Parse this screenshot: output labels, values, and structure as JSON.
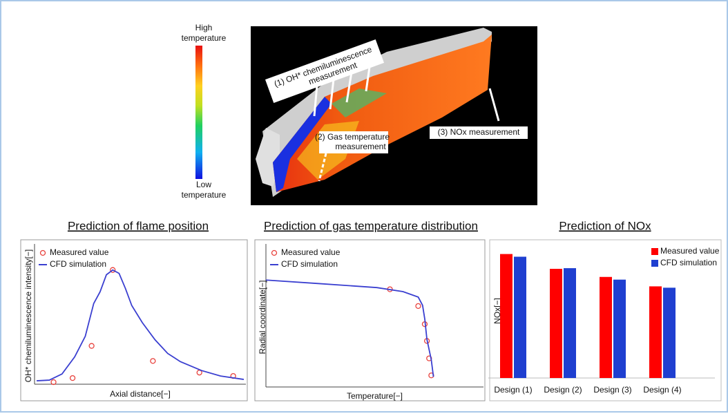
{
  "figure": {
    "colorbar_high": "High temperature",
    "colorbar_low": "Low temperature",
    "label_1": "(1) OH* chemiluminescence measurement",
    "label_2": "(2) Gas temperature measurement",
    "label_3": "(3) NOx measurement"
  },
  "chart_data": [
    {
      "type": "line",
      "title": "Prediction of flame position",
      "x_label": "Axial distance[−]",
      "y_label": "OH* chemiluminescence intensity[−]",
      "xlim": [
        0,
        100
      ],
      "ylim": [
        0,
        100
      ],
      "legend": "upper left",
      "series": [
        {
          "name": "Measured value",
          "color": "#e8413c",
          "mode": "markers",
          "x": [
            9,
            18,
            27,
            37,
            56,
            78,
            94
          ],
          "values": [
            1.5,
            4.5,
            28,
            83.5,
            17,
            8.5,
            6
          ]
        },
        {
          "name": "CFD simulation",
          "color": "#3a3fd0",
          "mode": "line",
          "x": [
            1,
            7,
            13,
            19,
            24,
            28,
            31,
            34,
            37,
            40,
            43,
            46,
            51,
            57,
            63,
            69,
            79,
            88,
            99
          ],
          "values": [
            2.5,
            3,
            7.5,
            20,
            35,
            59,
            67.5,
            80,
            83.5,
            81,
            70,
            57.5,
            45,
            32.5,
            22.5,
            16.5,
            10,
            6,
            3.5
          ]
        }
      ]
    },
    {
      "type": "line",
      "title": "Prediction of gas temperature distribution",
      "x_label": "Temperature[−]",
      "y_label": "Radial coordinate[−]",
      "xlim": [
        0,
        100
      ],
      "ylim": [
        0,
        100
      ],
      "legend": "upper left",
      "series": [
        {
          "name": "Measured value",
          "color": "#e8413c",
          "mode": "markers",
          "x": [
            57,
            70,
            73,
            74,
            75,
            76
          ],
          "values": [
            70,
            58,
            45,
            33,
            20.5,
            8.3
          ]
        },
        {
          "name": "CFD simulation",
          "color": "#3a3fd0",
          "mode": "line",
          "x": [
            0,
            24,
            51,
            63,
            70,
            72,
            73,
            74,
            76,
            77
          ],
          "values": [
            76.6,
            74.1,
            71.2,
            68.3,
            64.4,
            58.5,
            48.8,
            34.1,
            19.5,
            7.3
          ]
        }
      ]
    },
    {
      "type": "bar",
      "title": "Prediction of NOx",
      "y_label": "NOx[−]",
      "ylim": [
        0,
        100
      ],
      "legend": "upper right",
      "categories": [
        "Design (1)",
        "Design (2)",
        "Design (3)",
        "Design (4)"
      ],
      "series": [
        {
          "name": "Measured value",
          "color": "#ff0000",
          "values": [
            92,
            81,
            75,
            68
          ]
        },
        {
          "name": "CFD simulation",
          "color": "#1f3fd0",
          "values": [
            90,
            81.5,
            73,
            67
          ]
        }
      ]
    }
  ]
}
